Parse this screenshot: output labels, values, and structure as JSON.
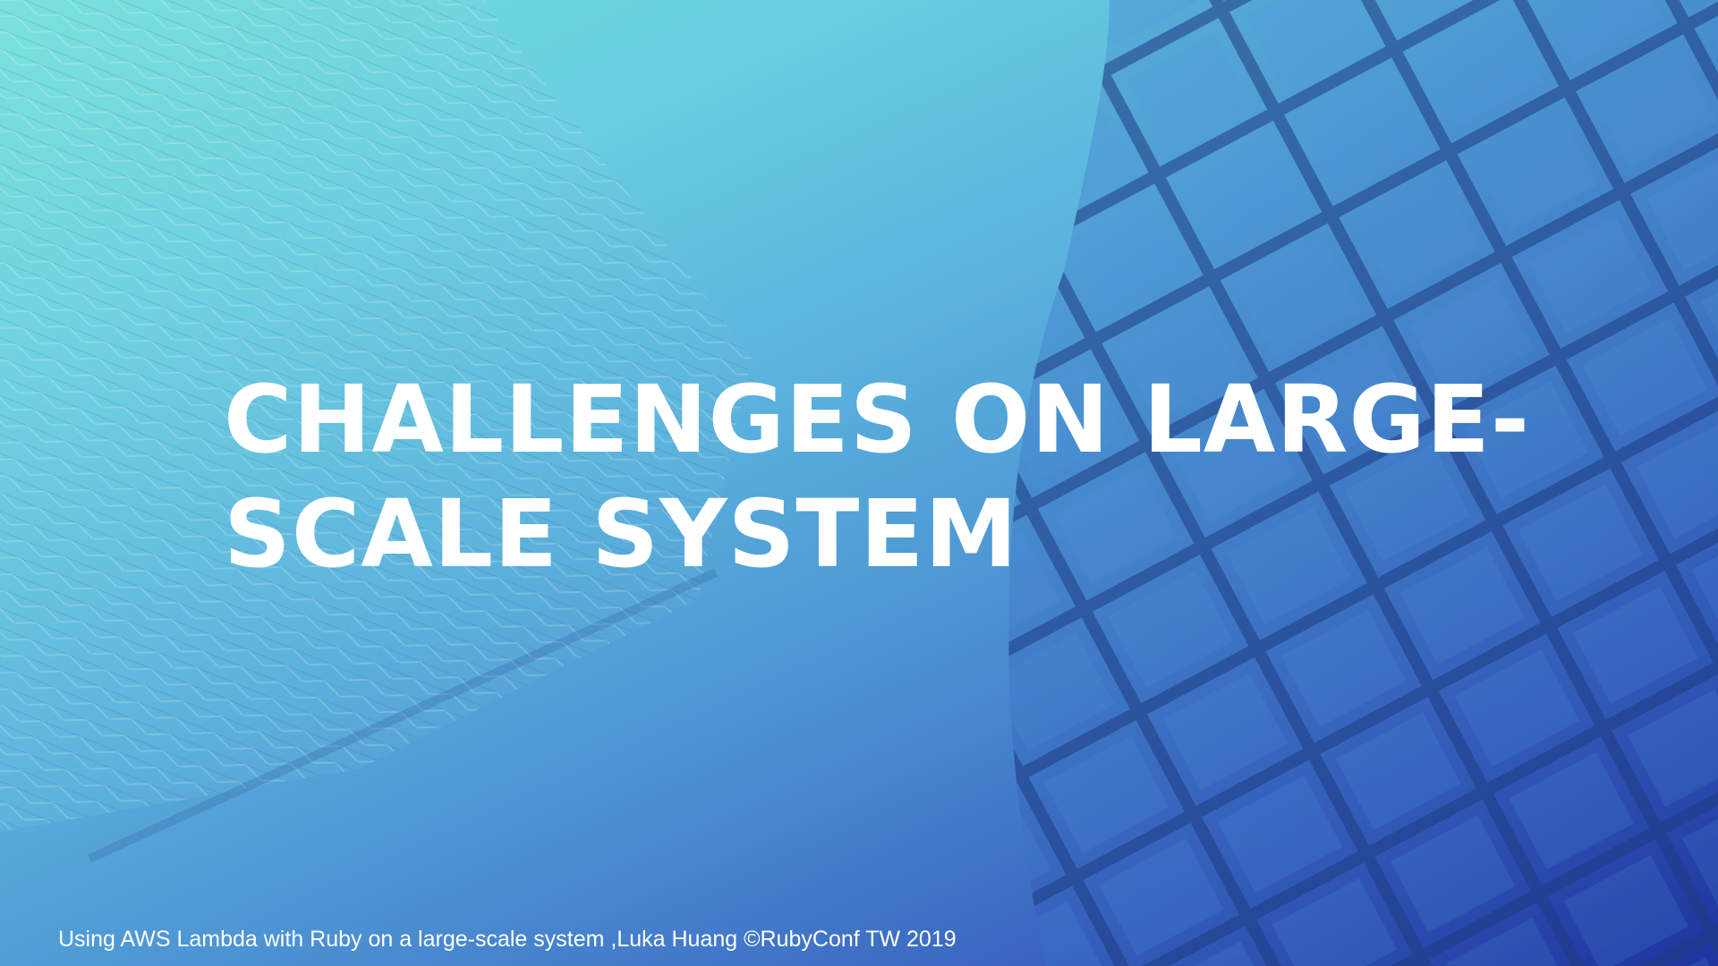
{
  "slide": {
    "title_lines": [
      "CHALLENGES ON LARGE-",
      "SCALE SYSTEM"
    ],
    "footer": "Using AWS Lambda with Ruby on a large-scale system ,Luka Huang ©RubyConf TW 2019"
  },
  "background": {
    "description_icon": "building-facade-photo",
    "gradient_colors": [
      "#6fe0d8",
      "#5ab3dd",
      "#3a64c0",
      "#1e2f9e"
    ]
  }
}
